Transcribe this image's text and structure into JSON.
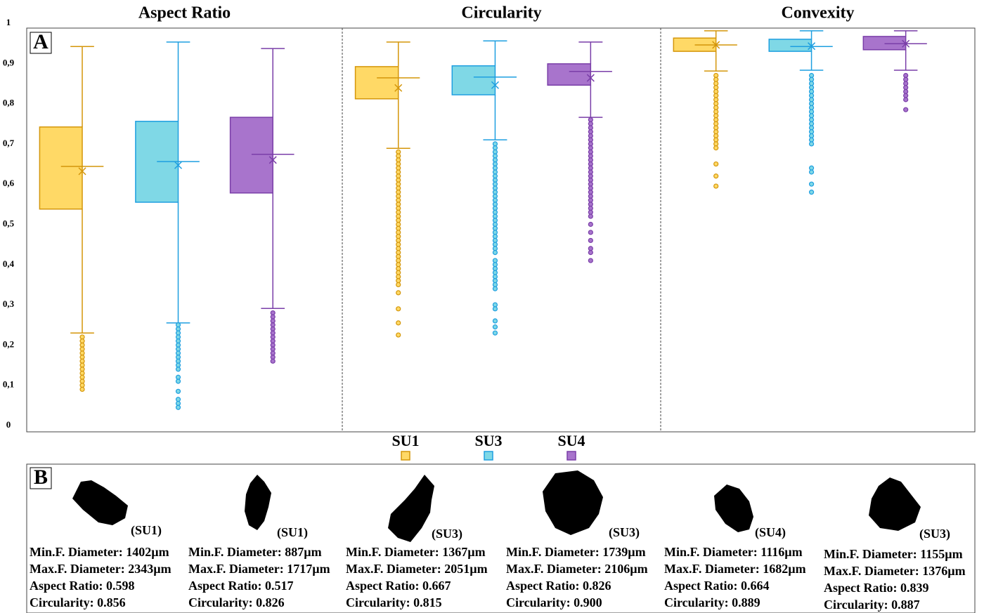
{
  "chart_data": {
    "type": "box",
    "panel_label": "A",
    "groups": [
      "Aspect Ratio",
      "Circularity",
      "Convexity"
    ],
    "ylim": [
      0,
      1
    ],
    "yticks": [
      0,
      {
        "value": 0.1,
        "label": "0,1"
      },
      {
        "value": 0.2,
        "label": "0,2"
      },
      {
        "value": 0.3,
        "label": "0,3"
      },
      {
        "value": 0.4,
        "label": "0,4"
      },
      {
        "value": 0.5,
        "label": "0,5"
      },
      {
        "value": 0.6,
        "label": "0,6"
      },
      {
        "value": 0.7,
        "label": "0,7"
      },
      {
        "value": 0.8,
        "label": "0,8"
      },
      {
        "value": 0.9,
        "label": "0,9"
      },
      1
    ],
    "series": [
      {
        "name": "SU1",
        "color": "#ffd966",
        "edge_color": "#d4960a",
        "boxes": [
          {
            "whisker_low": 0.23,
            "q1": 0.538,
            "median": 0.644,
            "q3": 0.742,
            "whisker_high": 0.942,
            "mean": 0.632,
            "outliers": [
              0.22,
              0.21,
              0.2,
              0.19,
              0.18,
              0.17,
              0.16,
              0.15,
              0.14,
              0.13,
              0.12,
              0.11,
              0.1,
              0.09
            ]
          },
          {
            "whisker_low": 0.689,
            "q1": 0.812,
            "median": 0.864,
            "q3": 0.892,
            "whisker_high": 0.953,
            "mean": 0.839,
            "outliers": [
              0.68,
              0.67,
              0.66,
              0.65,
              0.64,
              0.63,
              0.62,
              0.61,
              0.6,
              0.59,
              0.58,
              0.57,
              0.56,
              0.55,
              0.54,
              0.53,
              0.52,
              0.51,
              0.5,
              0.49,
              0.48,
              0.47,
              0.46,
              0.45,
              0.44,
              0.43,
              0.42,
              0.41,
              0.4,
              0.39,
              0.38,
              0.37,
              0.36,
              0.35,
              0.33,
              0.29,
              0.255,
              0.225
            ]
          },
          {
            "whisker_low": 0.881,
            "q1": 0.93,
            "median": 0.946,
            "q3": 0.963,
            "whisker_high": 0.981,
            "mean": 0.946,
            "outliers": [
              0.87,
              0.86,
              0.85,
              0.84,
              0.83,
              0.82,
              0.81,
              0.8,
              0.79,
              0.78,
              0.77,
              0.76,
              0.75,
              0.74,
              0.73,
              0.72,
              0.71,
              0.7,
              0.69,
              0.65,
              0.62,
              0.595
            ]
          }
        ]
      },
      {
        "name": "SU3",
        "color": "#7fd8e6",
        "edge_color": "#1e9fe0",
        "boxes": [
          {
            "whisker_low": 0.255,
            "q1": 0.555,
            "median": 0.656,
            "q3": 0.756,
            "whisker_high": 0.953,
            "mean": 0.647,
            "outliers": [
              0.25,
              0.24,
              0.23,
              0.22,
              0.21,
              0.2,
              0.19,
              0.18,
              0.17,
              0.16,
              0.15,
              0.14,
              0.12,
              0.11,
              0.085,
              0.065,
              0.055,
              0.045
            ]
          },
          {
            "whisker_low": 0.71,
            "q1": 0.822,
            "median": 0.866,
            "q3": 0.894,
            "whisker_high": 0.956,
            "mean": 0.846,
            "outliers": [
              0.7,
              0.69,
              0.68,
              0.67,
              0.66,
              0.65,
              0.64,
              0.63,
              0.62,
              0.61,
              0.6,
              0.59,
              0.58,
              0.57,
              0.56,
              0.55,
              0.54,
              0.53,
              0.52,
              0.51,
              0.5,
              0.49,
              0.48,
              0.47,
              0.46,
              0.45,
              0.44,
              0.43,
              0.41,
              0.4,
              0.39,
              0.38,
              0.37,
              0.36,
              0.35,
              0.34,
              0.3,
              0.29,
              0.26,
              0.245,
              0.23
            ]
          },
          {
            "whisker_low": 0.883,
            "q1": 0.93,
            "median": 0.942,
            "q3": 0.96,
            "whisker_high": 0.981,
            "mean": 0.943,
            "outliers": [
              0.87,
              0.86,
              0.85,
              0.84,
              0.83,
              0.82,
              0.81,
              0.8,
              0.79,
              0.78,
              0.77,
              0.76,
              0.75,
              0.74,
              0.73,
              0.72,
              0.71,
              0.7,
              0.64,
              0.63,
              0.6,
              0.58
            ]
          }
        ]
      },
      {
        "name": "SU4",
        "color": "#a874cc",
        "edge_color": "#7a3ea8",
        "boxes": [
          {
            "whisker_low": 0.291,
            "q1": 0.578,
            "median": 0.674,
            "q3": 0.766,
            "whisker_high": 0.937,
            "mean": 0.66,
            "outliers": [
              0.28,
              0.27,
              0.26,
              0.25,
              0.24,
              0.23,
              0.22,
              0.21,
              0.2,
              0.19,
              0.18,
              0.17,
              0.16
            ]
          },
          {
            "whisker_low": 0.766,
            "q1": 0.846,
            "median": 0.88,
            "q3": 0.899,
            "whisker_high": 0.953,
            "mean": 0.864,
            "outliers": [
              0.76,
              0.75,
              0.74,
              0.73,
              0.72,
              0.71,
              0.7,
              0.69,
              0.68,
              0.67,
              0.66,
              0.65,
              0.64,
              0.63,
              0.62,
              0.61,
              0.6,
              0.59,
              0.58,
              0.57,
              0.56,
              0.55,
              0.54,
              0.53,
              0.52,
              0.5,
              0.48,
              0.46,
              0.44,
              0.43,
              0.41
            ]
          },
          {
            "whisker_low": 0.883,
            "q1": 0.934,
            "median": 0.949,
            "q3": 0.967,
            "whisker_high": 0.981,
            "mean": 0.949,
            "outliers": [
              0.87,
              0.86,
              0.85,
              0.84,
              0.83,
              0.82,
              0.81,
              0.785
            ]
          }
        ]
      }
    ]
  },
  "panel_b": {
    "label": "B",
    "particles": [
      {
        "tag": "(SU1)",
        "lines": [
          "Min.F. Diameter: 1402µm",
          "Max.F. Diameter: 2343µm",
          "Aspect Ratio: 0.598",
          "Circularity: 0.856"
        ]
      },
      {
        "tag": "(SU1)",
        "lines": [
          "Min.F. Diameter: 887µm",
          "Max.F. Diameter: 1717µm",
          "Aspect Ratio: 0.517",
          "Circularity: 0.826"
        ]
      },
      {
        "tag": "(SU3)",
        "lines": [
          "Min.F. Diameter: 1367µm",
          "Max.F. Diameter: 2051µm",
          "Aspect Ratio: 0.667",
          "Circularity: 0.815"
        ]
      },
      {
        "tag": "(SU3)",
        "lines": [
          "Min.F. Diameter: 1739µm",
          "Max.F. Diameter: 2106µm",
          "Aspect Ratio: 0.826",
          "Circularity: 0.900"
        ]
      },
      {
        "tag": "(SU4)",
        "lines": [
          "Min.F. Diameter: 1116µm",
          "Max.F. Diameter: 1682µm",
          "Aspect Ratio: 0.664",
          "Circularity: 0.889"
        ]
      },
      {
        "tag": "(SU3)",
        "lines": [
          "Min.F. Diameter: 1155µm",
          "Max.F. Diameter: 1376µm",
          "Aspect Ratio: 0.839",
          "Circularity: 0.887"
        ]
      }
    ]
  }
}
